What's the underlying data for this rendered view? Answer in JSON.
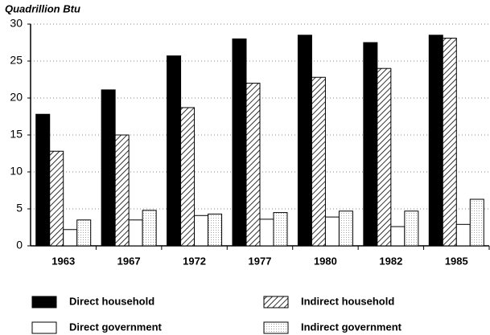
{
  "chart_data": {
    "type": "bar",
    "y_label": "Quadrillion Btu",
    "categories": [
      "1963",
      "1967",
      "1972",
      "1977",
      "1980",
      "1982",
      "1985"
    ],
    "series": [
      {
        "name": "Direct household",
        "color": "#000000",
        "pattern": "solid",
        "values": [
          17.8,
          21.1,
          25.7,
          28.0,
          28.5,
          27.5,
          28.5
        ]
      },
      {
        "name": "Indirect household",
        "color": "#ffffff",
        "pattern": "hatch",
        "values": [
          12.8,
          15.0,
          18.7,
          22.0,
          22.8,
          24.0,
          28.1
        ]
      },
      {
        "name": "Direct government",
        "color": "#ffffff",
        "pattern": "solid",
        "values": [
          2.2,
          3.5,
          4.1,
          3.6,
          3.9,
          2.6,
          2.9
        ]
      },
      {
        "name": "Indirect government",
        "color": "#ffffff",
        "pattern": "dots",
        "values": [
          3.5,
          4.8,
          4.3,
          4.5,
          4.7,
          4.7,
          6.3
        ]
      }
    ],
    "ylim": [
      0,
      30
    ],
    "yticks": [
      0,
      5,
      10,
      15,
      20,
      25,
      30
    ],
    "grid": true
  }
}
